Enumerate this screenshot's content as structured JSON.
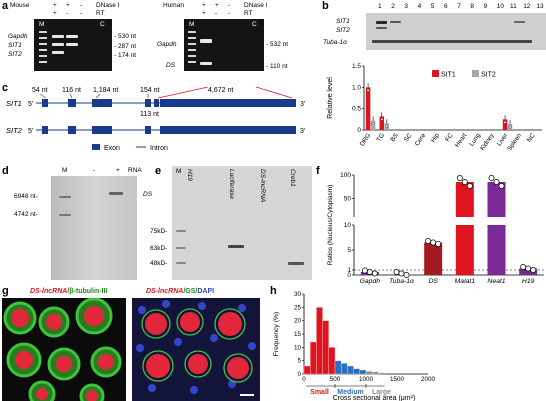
{
  "panel_a": {
    "label": "a",
    "mouse": {
      "species": "Mouse",
      "dnase": "DNase I",
      "rt": "RT",
      "dnase_signs": [
        "+",
        "+",
        "-"
      ],
      "rt_signs": [
        "+",
        "-",
        "-"
      ],
      "m": "M",
      "c": "C",
      "genes": [
        "Gapdh",
        "SIT1",
        "SIT2"
      ],
      "sizes": [
        "- 530 nt",
        "- 287 nt",
        "- 174 nt"
      ]
    },
    "human": {
      "species": "Human",
      "dnase": "DNase I",
      "rt": "RT",
      "dnase_signs": [
        "+",
        "+",
        "-"
      ],
      "rt_signs": [
        "+",
        "-",
        "-"
      ],
      "m": "M",
      "c": "C",
      "genes": [
        "Gapdh",
        "DS"
      ],
      "sizes": [
        "- 532 nt",
        "- 110 nt"
      ]
    }
  },
  "panel_b": {
    "label": "b",
    "lane_numbers": [
      "1",
      "2",
      "3",
      "4",
      "5",
      "6",
      "7",
      "8",
      "9",
      "10",
      "11",
      "12",
      "13"
    ],
    "gel_labels": [
      "SIT1",
      "SIT2",
      "Tuba-1α"
    ],
    "chart_data": {
      "type": "bar",
      "categories": [
        "DRG",
        "TG",
        "BS",
        "SC",
        "Cere",
        "Hip",
        "FC",
        "Heart",
        "Lung",
        "Kidney",
        "Liver",
        "Spleen",
        "NC"
      ],
      "series": [
        {
          "name": "SIT1",
          "values": [
            1.0,
            0.32,
            0,
            0,
            0,
            0,
            0,
            0,
            0,
            0,
            0.25,
            0,
            0
          ],
          "color": "#e0141e"
        },
        {
          "name": "SIT2",
          "values": [
            0.22,
            0.16,
            0,
            0,
            0,
            0,
            0,
            0,
            0,
            0,
            0.14,
            0,
            0
          ],
          "color": "#a8a8a8"
        }
      ],
      "ylabel": "Relative level",
      "ylim": [
        0,
        1.5
      ],
      "yticks": [
        "0",
        "0.5",
        "1.0",
        "1.5"
      ]
    }
  },
  "panel_c": {
    "label": "c",
    "sit1": "SIT1",
    "sit2": "SIT2",
    "five": "5'",
    "three": "3'",
    "exon_sizes": [
      "54 nt",
      "116 nt",
      "1,184 nt",
      "154 nt",
      "4,672 nt"
    ],
    "intron_size": "113 nt",
    "legend_exon": "Exon",
    "legend_intron": "Intron"
  },
  "panel_d": {
    "label": "d",
    "m": "M",
    "minus": "-",
    "plus": "+",
    "rna": "RNA",
    "markers": [
      "6948 nt-",
      "4742 nt-"
    ],
    "ds": "DS"
  },
  "panel_e": {
    "label": "e",
    "m": "M",
    "lanes": [
      "H19",
      "Luciferase",
      "DS-lncRNA",
      "Creb1"
    ],
    "markers": [
      "75kD-",
      "63kD-",
      "48kD-"
    ]
  },
  "panel_f": {
    "label": "f",
    "chart_data": {
      "type": "bar",
      "categories": [
        "Gapdh",
        "Tuba-1α",
        "DS",
        "Malat1",
        "Neat1",
        "H19"
      ],
      "values": [
        0.6,
        0.3,
        6.5,
        85,
        85,
        1.3
      ],
      "colors": [
        "#6e2f8c",
        "#6e2f8c",
        "#a31a20",
        "#e0141e",
        "#7a2a96",
        "#6e2f8c"
      ],
      "ylabel": "Ratios (Nucleus/Cytoplasm)",
      "yticks_bottom": [
        "0",
        "1",
        "5",
        "10"
      ],
      "yticks_top": [
        "50",
        "100"
      ]
    }
  },
  "panel_g": {
    "label": "g",
    "left_title": {
      "a": "DS-lncRNA",
      "b": "/β-tubulin-III"
    },
    "right_title": {
      "a": "DS-lncRNA",
      "b": "/GS/",
      "c": "DAPI"
    }
  },
  "panel_h": {
    "label": "h",
    "chart_data": {
      "type": "bar",
      "x": [
        100,
        200,
        300,
        400,
        500,
        600,
        700,
        800,
        900,
        1000,
        1100,
        1200,
        1300
      ],
      "values": [
        3,
        12,
        25,
        20,
        10,
        5,
        4,
        3,
        2,
        1.5,
        1,
        0.8,
        0.5
      ],
      "ylabel": "Frequency (%)",
      "xlabel": "Cross sectional area (μm²)",
      "xticks": [
        "0",
        "500",
        "1000",
        "1500",
        "2000"
      ],
      "yticks": [
        "0",
        "5",
        "10",
        "15",
        "20",
        "25",
        "30"
      ],
      "ranges": [
        "Small",
        "Medium",
        "Large"
      ],
      "range_colors": [
        "#e0141e",
        "#2a6fc0",
        "#8a8a8a"
      ]
    }
  }
}
